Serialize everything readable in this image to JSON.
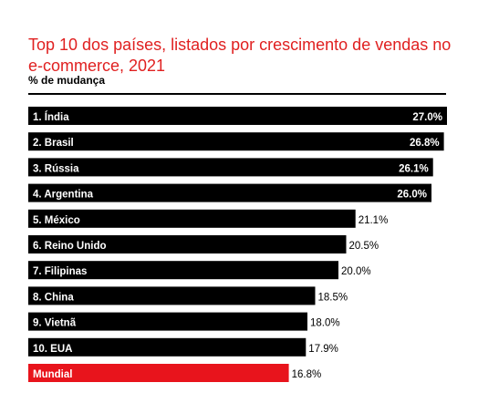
{
  "chart_data": {
    "type": "bar",
    "orientation": "horizontal",
    "title": "Top 10 dos países, listados por crescimento de vendas no e-commerce, 2021",
    "subtitle": "% de mudança",
    "unit": "%",
    "categories": [
      "1.  Índia",
      "2.  Brasil",
      "3.  Rússia",
      "4.  Argentina",
      "5.  México",
      "6.  Reino Unido",
      "7.  Filipinas",
      "8.  China",
      "9.  Vietnã",
      "10. EUA",
      "Mundial"
    ],
    "values": [
      27.0,
      26.8,
      26.1,
      26.0,
      21.1,
      20.5,
      20.0,
      18.5,
      18.0,
      17.9,
      16.8
    ],
    "value_labels": [
      "27.0%",
      "26.8%",
      "26.1%",
      "26.0%",
      "21.1%",
      "20.5%",
      "20.0%",
      "18.5%",
      "18.0%",
      "17.9%",
      "16.8%"
    ],
    "highlight_category": "Mundial",
    "colors": {
      "bar": "#000000",
      "highlight": "#e8141c",
      "title": "#e02020",
      "label_inside": "#ffffff",
      "label_outside": "#000000"
    },
    "legend": "none",
    "grid": false
  }
}
